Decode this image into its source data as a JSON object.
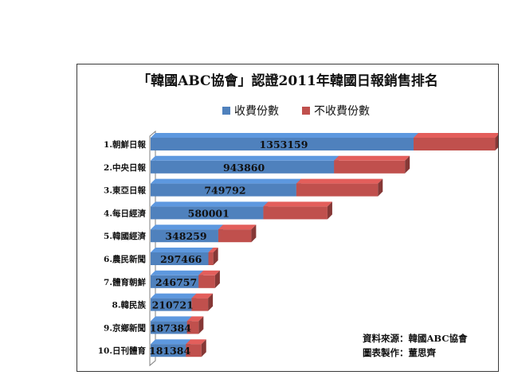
{
  "chart_data": {
    "type": "bar",
    "orientation": "horizontal",
    "stacked": true,
    "title": "「韓國ABC協會」認證2011年韓國日報銷售排名",
    "legend": {
      "position": "top"
    },
    "categories": [
      "1.朝鮮日報",
      "2.中央日報",
      "3.東亞日報",
      "4.每日經濟",
      "5.韓國經濟",
      "6.農民新聞",
      "7.體育朝鮮",
      "8.韓民族",
      "9.京鄉新聞",
      "10.日刊體育"
    ],
    "series": [
      {
        "name": "收費份數",
        "color": "#4f81bd",
        "values": [
          1353159,
          943860,
          749792,
          580001,
          348259,
          297466,
          246757,
          210721,
          187384,
          181384
        ]
      },
      {
        "name": "不收費份數",
        "color": "#c0504d",
        "values": [
          420000,
          365000,
          420000,
          330000,
          170000,
          25000,
          85000,
          85000,
          60000,
          80000
        ]
      }
    ],
    "xlim": [
      0,
      1900000
    ],
    "grid": false
  },
  "source": {
    "line1": "資料來源：韓國ABC協會",
    "line2": "圖表製作：董思齊"
  }
}
